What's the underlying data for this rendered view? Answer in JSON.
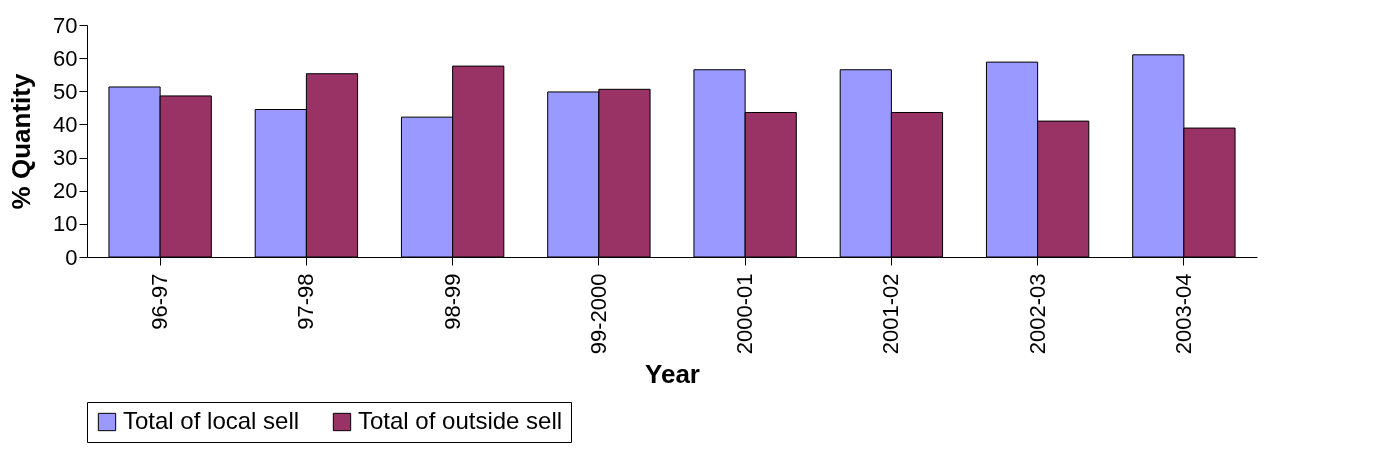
{
  "chart_data": {
    "type": "bar",
    "xlabel": "Year",
    "ylabel": "% Quantity",
    "categories": [
      "96-97",
      "97-98",
      "98-99",
      "99-2000",
      "2000-01",
      "2001-02",
      "2002-03",
      "2003-04"
    ],
    "series": [
      {
        "name": "Total of local sell",
        "color": "#9999ff",
        "values": [
          51.3,
          44.5,
          42.2,
          49.8,
          56.5,
          56.5,
          58.8,
          61
        ]
      },
      {
        "name": "Total of outside sell",
        "color": "#993366",
        "values": [
          48.6,
          55.3,
          57.6,
          50.6,
          43.6,
          43.6,
          41,
          38.9
        ]
      }
    ],
    "ylim": [
      0,
      70
    ],
    "yticks": [
      0,
      10,
      20,
      30,
      40,
      50,
      60,
      70
    ],
    "grid": false,
    "legend": "bottom"
  }
}
